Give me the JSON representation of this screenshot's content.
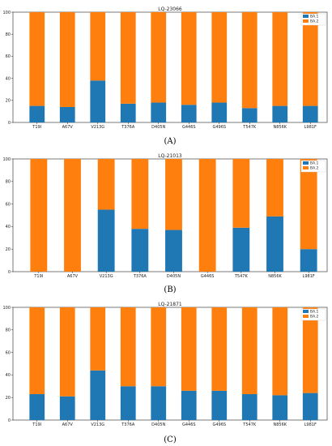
{
  "colors": {
    "ba1": "#1f77b4",
    "ba2": "#ff7f0e"
  },
  "chart_data": [
    {
      "type": "bar",
      "stacked": true,
      "title": "LQ-23066",
      "caption": "(A)",
      "categories": [
        "T19I",
        "A67V",
        "V213G",
        "T376A",
        "D405N",
        "G446S",
        "G496S",
        "T547K",
        "N856K",
        "L981F"
      ],
      "series": [
        {
          "name": "BA.1",
          "values": [
            15,
            14,
            38,
            17,
            18,
            16,
            18,
            13,
            15,
            15
          ]
        },
        {
          "name": "BA.2",
          "values": [
            85,
            86,
            62,
            83,
            82,
            84,
            82,
            87,
            85,
            85
          ]
        }
      ],
      "ylim": [
        0,
        100
      ],
      "yticks": [
        0,
        20,
        40,
        60,
        80,
        100
      ],
      "legend": "top-right"
    },
    {
      "type": "bar",
      "stacked": true,
      "title": "LQ-21013",
      "caption": "(B)",
      "categories": [
        "T19I",
        "A67V",
        "V213G",
        "T376A",
        "D405N",
        "G446S",
        "T547K",
        "N856K",
        "L981F"
      ],
      "series": [
        {
          "name": "BA.1",
          "values": [
            0,
            0,
            55,
            38,
            37,
            0,
            39,
            49,
            20
          ]
        },
        {
          "name": "BA.2",
          "values": [
            100,
            100,
            45,
            62,
            63,
            100,
            61,
            51,
            80
          ]
        }
      ],
      "ylim": [
        0,
        100
      ],
      "yticks": [
        0,
        20,
        40,
        60,
        80,
        100
      ],
      "legend": "top-right"
    },
    {
      "type": "bar",
      "stacked": true,
      "title": "LQ-21871",
      "caption": "(C)",
      "categories": [
        "T19I",
        "A67V",
        "V213G",
        "T376A",
        "D405N",
        "G446S",
        "G496S",
        "T547K",
        "N856K",
        "L981F"
      ],
      "series": [
        {
          "name": "BA.1",
          "values": [
            23,
            21,
            44,
            30,
            30,
            26,
            26,
            23,
            22,
            24
          ]
        },
        {
          "name": "BA.2",
          "values": [
            77,
            79,
            56,
            70,
            70,
            74,
            74,
            77,
            78,
            76
          ]
        }
      ],
      "ylim": [
        0,
        100
      ],
      "yticks": [
        0,
        20,
        40,
        60,
        80,
        100
      ],
      "legend": "top-right"
    }
  ]
}
